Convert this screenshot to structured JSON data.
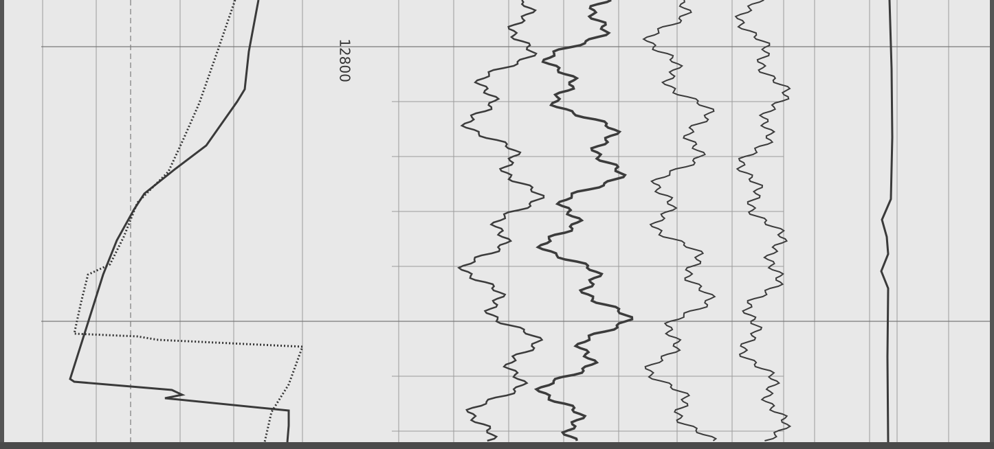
{
  "log": {
    "depth_label": "12800"
  }
}
